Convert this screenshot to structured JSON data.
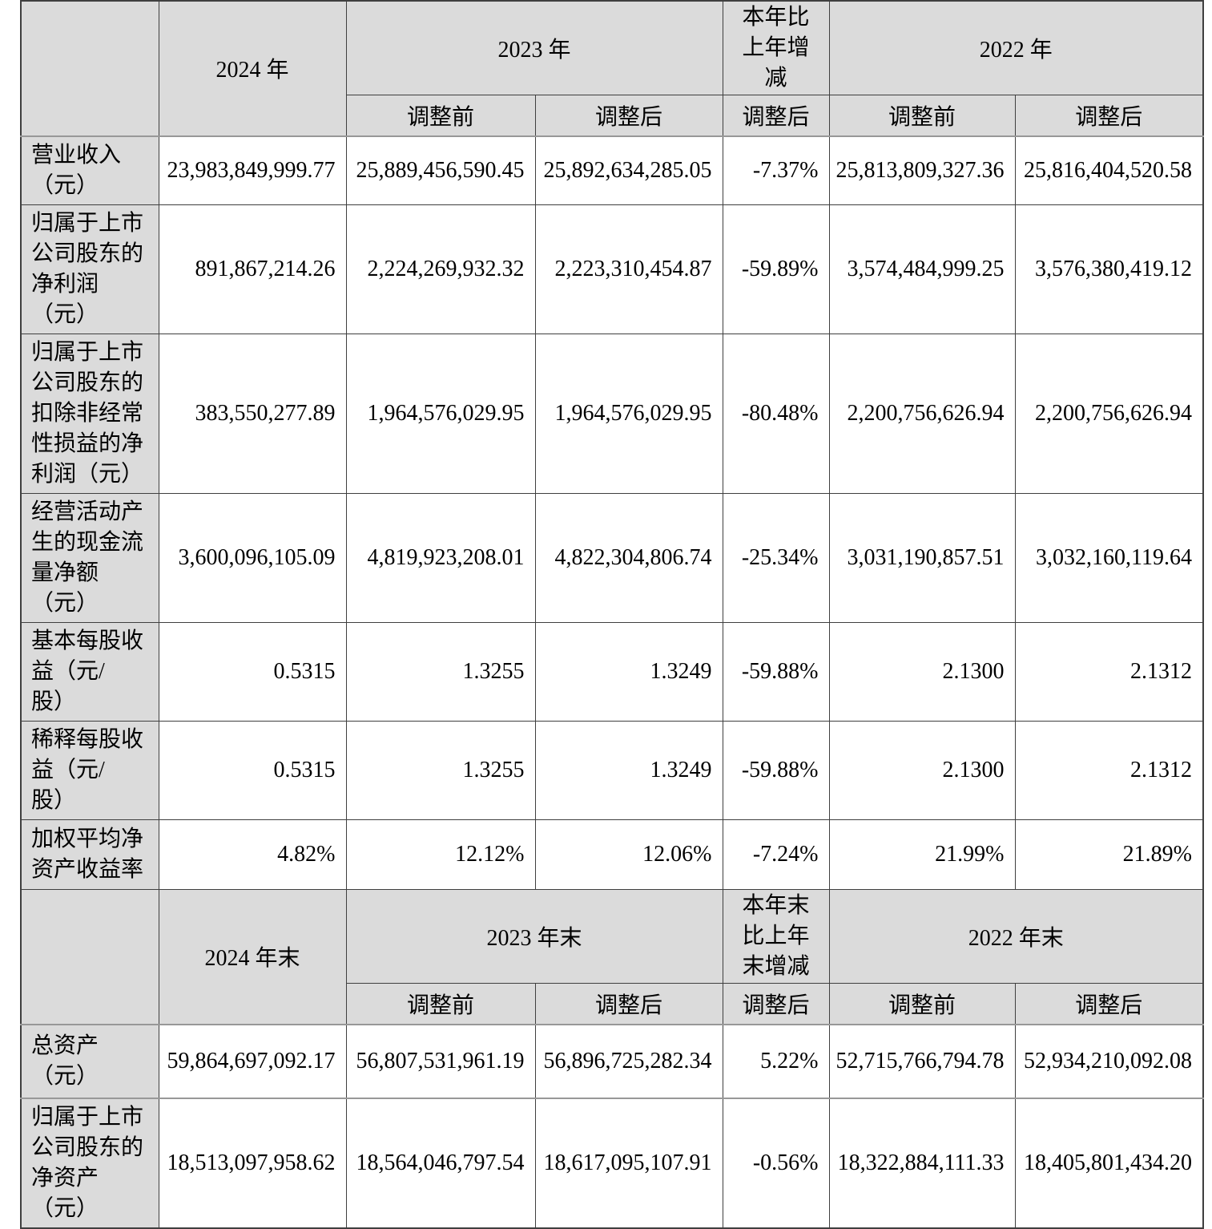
{
  "colors": {
    "header_background": "#dbdbdb",
    "border_dark": "#3f3f3f",
    "border_thick_gray": "#989898",
    "text": "#000000"
  },
  "table": {
    "sections": [
      {
        "header": {
          "corner": "",
          "year_current": "2024 年",
          "year_prev_group": "2023 年",
          "change_label": "本年比\n上年增\n减",
          "year_prev2_group": "2022 年",
          "subheaders": [
            "调整前",
            "调整后",
            "调整后",
            "调整前",
            "调整后"
          ]
        },
        "rows": [
          {
            "label": "营业收入\n（元）",
            "values": [
              "23,983,849,999.77",
              "25,889,456,590.45",
              "25,892,634,285.05",
              "-7.37%",
              "25,813,809,327.36",
              "25,816,404,520.58"
            ]
          },
          {
            "label": "归属于上市\n公司股东的\n净利润\n（元）",
            "values": [
              "891,867,214.26",
              "2,224,269,932.32",
              "2,223,310,454.87",
              "-59.89%",
              "3,574,484,999.25",
              "3,576,380,419.12"
            ]
          },
          {
            "label": "归属于上市\n公司股东的\n扣除非经常\n性损益的净\n利润（元）",
            "values": [
              "383,550,277.89",
              "1,964,576,029.95",
              "1,964,576,029.95",
              "-80.48%",
              "2,200,756,626.94",
              "2,200,756,626.94"
            ]
          },
          {
            "label": "经营活动产\n生的现金流\n量净额\n（元）",
            "values": [
              "3,600,096,105.09",
              "4,819,923,208.01",
              "4,822,304,806.74",
              "-25.34%",
              "3,031,190,857.51",
              "3,032,160,119.64"
            ]
          },
          {
            "label": "基本每股收\n益（元/\n股）",
            "values": [
              "0.5315",
              "1.3255",
              "1.3249",
              "-59.88%",
              "2.1300",
              "2.1312"
            ]
          },
          {
            "label": "稀释每股收\n益（元/\n股）",
            "values": [
              "0.5315",
              "1.3255",
              "1.3249",
              "-59.88%",
              "2.1300",
              "2.1312"
            ]
          },
          {
            "label": "加权平均净\n资产收益率",
            "values": [
              "4.82%",
              "12.12%",
              "12.06%",
              "-7.24%",
              "21.99%",
              "21.89%"
            ]
          }
        ]
      },
      {
        "header": {
          "corner": "",
          "year_current": "2024 年末",
          "year_prev_group": "2023 年末",
          "change_label": "本年末\n比上年\n末增减",
          "year_prev2_group": "2022 年末",
          "subheaders": [
            "调整前",
            "调整后",
            "调整后",
            "调整前",
            "调整后"
          ]
        },
        "rows": [
          {
            "label": "总资产\n（元）",
            "values": [
              "59,864,697,092.17",
              "56,807,531,961.19",
              "56,896,725,282.34",
              "5.22%",
              "52,715,766,794.78",
              "52,934,210,092.08"
            ]
          },
          {
            "label": "归属于上市\n公司股东的\n净资产\n（元）",
            "values": [
              "18,513,097,958.62",
              "18,564,046,797.54",
              "18,617,095,107.91",
              "-0.56%",
              "18,322,884,111.33",
              "18,405,801,434.20"
            ]
          }
        ]
      }
    ]
  }
}
